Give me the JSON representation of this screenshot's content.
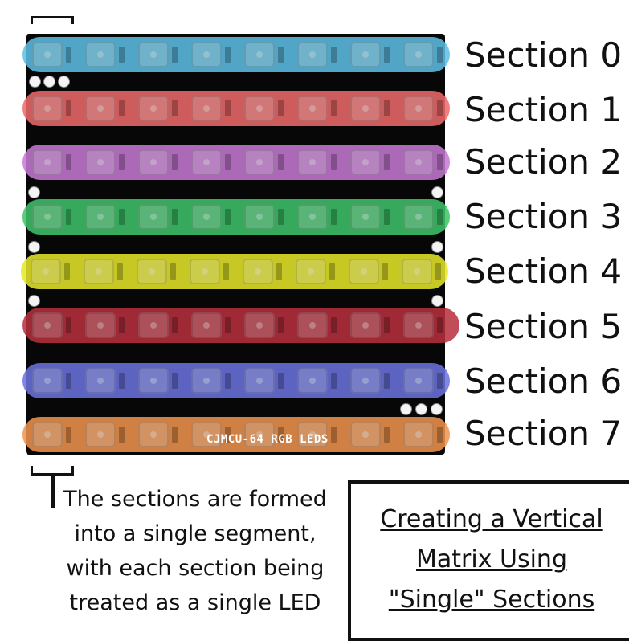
{
  "board": {
    "silkscreen": "CJMCU-64 RGB LEDS",
    "leds_per_section": 8
  },
  "sections": [
    {
      "label": "Section 0",
      "color": "#5ec0e6"
    },
    {
      "label": "Section 1",
      "color": "#f06a6a"
    },
    {
      "label": "Section 2",
      "color": "#c77ad6"
    },
    {
      "label": "Section 3",
      "color": "#3ec46a"
    },
    {
      "label": "Section 4",
      "color": "#e8e82a"
    },
    {
      "label": "Section 5",
      "color": "#b8303e"
    },
    {
      "label": "Section 6",
      "color": "#6b73e0"
    },
    {
      "label": "Section 7",
      "color": "#f0944c"
    }
  ],
  "note": {
    "lines": [
      "The sections are formed",
      "into a single segment,",
      "with each section being",
      "treated as a single LED"
    ]
  },
  "title": {
    "lines": [
      "Creating a Vertical",
      "Matrix Using",
      "\"Single\" Sections"
    ]
  }
}
